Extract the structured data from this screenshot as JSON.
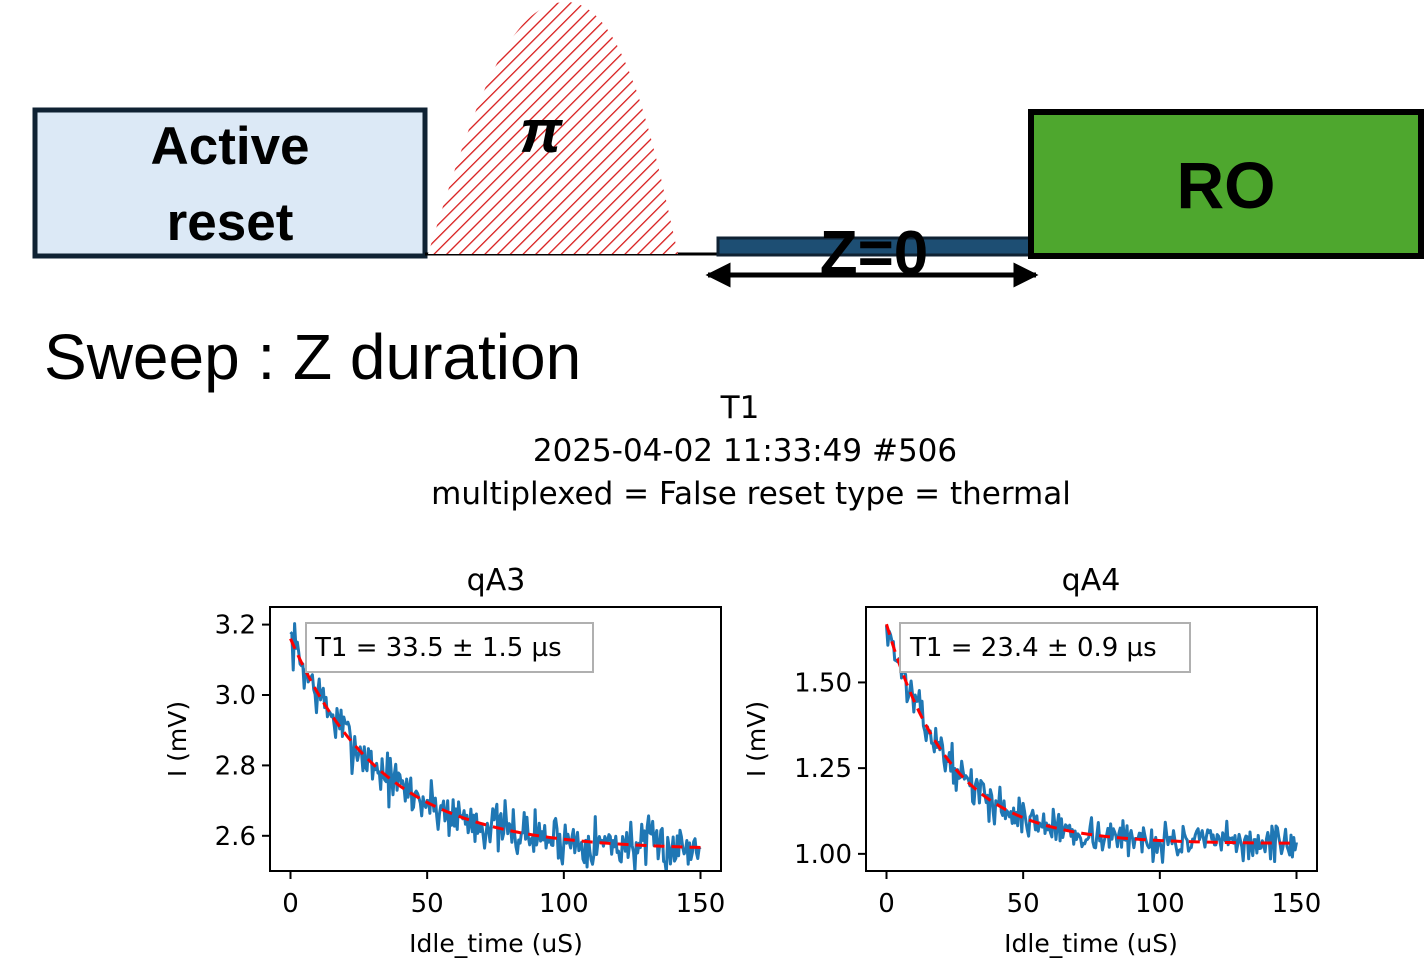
{
  "schematic": {
    "active_reset": {
      "line1": "Active",
      "line2": "reset"
    },
    "pi_pulse_label": "π",
    "z_label": "Z=0",
    "ro_label": "RO",
    "sweep_text": "Sweep : Z duration",
    "colors": {
      "active_reset_fill": "#dce9f6",
      "box_border": "#0f2233",
      "pi_hatch": "#d81b1b",
      "z_bar": "#1d4e73",
      "ro_fill": "#4ea72e"
    }
  },
  "figure": {
    "title_line1": "T1",
    "title_line2": "2025-04-02 11:33:49 #506",
    "title_line3": "multiplexed = False reset type = thermal"
  },
  "chart_data": [
    {
      "type": "line",
      "title": "qA3",
      "xlabel": "Idle_time (uS)",
      "ylabel": "I (mV)",
      "xlim": [
        -7.5,
        157.5
      ],
      "ylim": [
        2.5,
        3.25
      ],
      "xticks": [
        0,
        50,
        100,
        150
      ],
      "xtick_labels": [
        "0",
        "50",
        "100",
        "150"
      ],
      "yticks": [
        2.6,
        2.8,
        3.0,
        3.2
      ],
      "ytick_labels": [
        "2.6",
        "2.8",
        "3.0",
        "3.2"
      ],
      "fit_label": "T1 = 33.5 ± 1.5 µs",
      "fit": {
        "A": 0.6,
        "T1": 33.5,
        "offset": 2.56
      },
      "noise_amplitude": 0.035,
      "seed": 7,
      "n_points": 301,
      "series": [
        {
          "name": "data",
          "color": "#1f77b4"
        },
        {
          "name": "fit",
          "color": "#ff0000",
          "style": "dashed"
        }
      ]
    },
    {
      "type": "line",
      "title": "qA4",
      "xlabel": "Idle_time (uS)",
      "ylabel": "I (mV)",
      "xlim": [
        -7.5,
        157.5
      ],
      "ylim": [
        0.95,
        1.72
      ],
      "xticks": [
        0,
        50,
        100,
        150
      ],
      "xtick_labels": [
        "0",
        "50",
        "100",
        "150"
      ],
      "yticks": [
        1.0,
        1.25,
        1.5
      ],
      "ytick_labels": [
        "1.00",
        "1.25",
        "1.50"
      ],
      "fit_label": "T1 = 23.4 ± 0.9 µs",
      "fit": {
        "A": 0.64,
        "T1": 23.4,
        "offset": 1.03
      },
      "noise_amplitude": 0.025,
      "seed": 13,
      "n_points": 301,
      "series": [
        {
          "name": "data",
          "color": "#1f77b4"
        },
        {
          "name": "fit",
          "color": "#ff0000",
          "style": "dashed"
        }
      ]
    }
  ]
}
